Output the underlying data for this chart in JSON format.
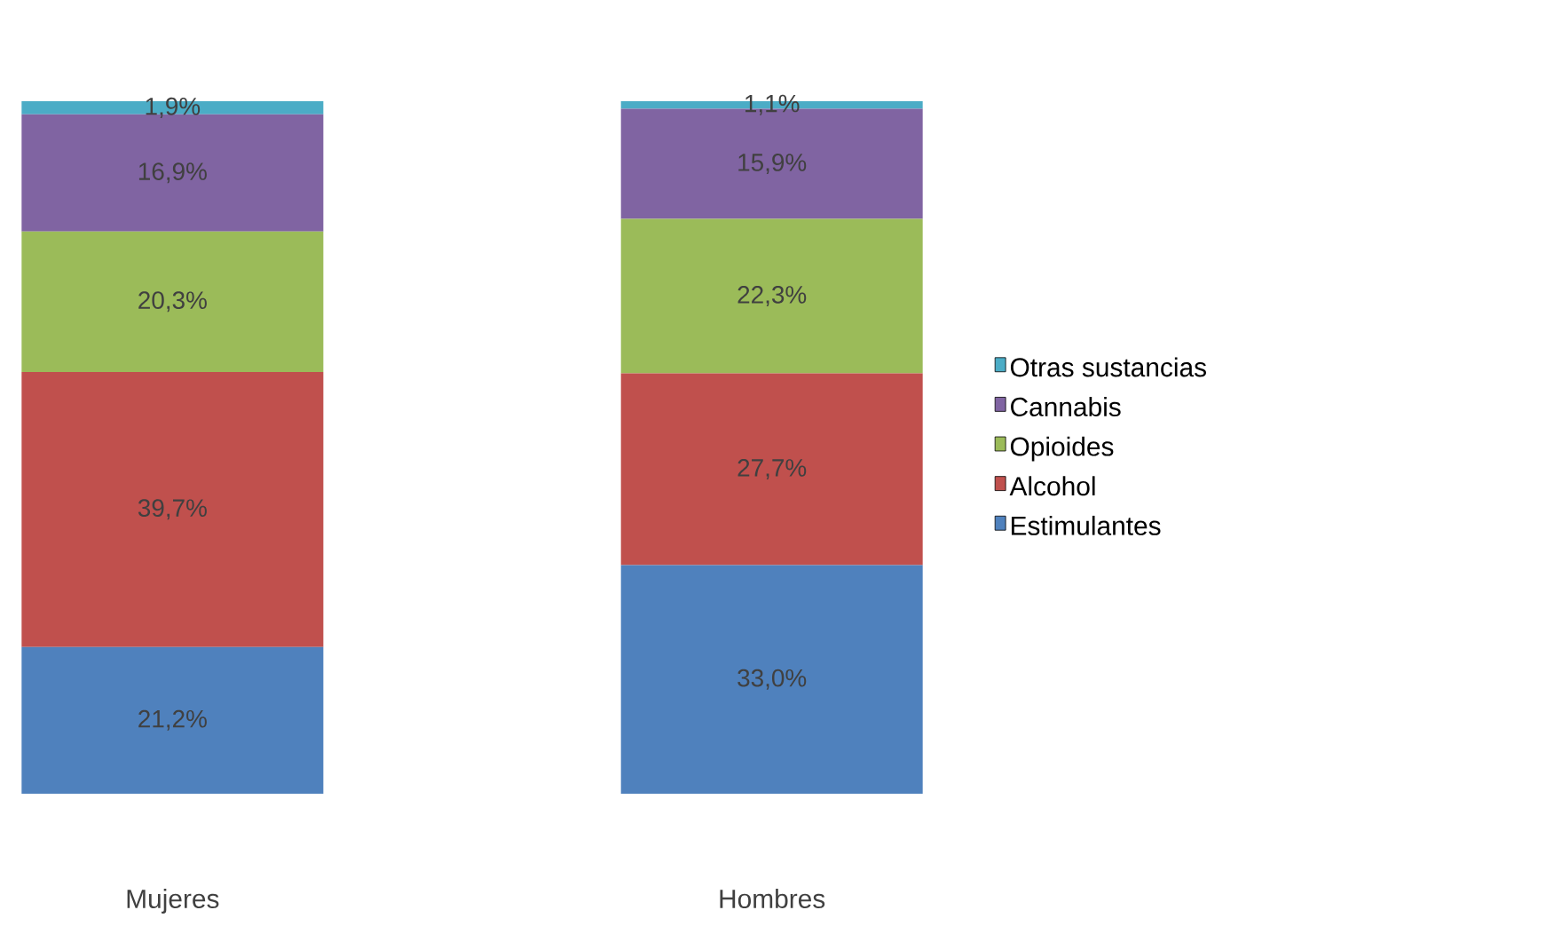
{
  "chart_data": {
    "type": "bar",
    "stacked": true,
    "categories": [
      "Mujeres",
      "Hombres"
    ],
    "legend": "right",
    "data_labels": true,
    "series": [
      {
        "name": "Estimulantes",
        "color": "#4f81bd",
        "values": [
          21.2,
          33.0
        ],
        "value_labels": [
          "21,2%",
          "33,0%"
        ]
      },
      {
        "name": "Alcohol",
        "color": "#c0504d",
        "values": [
          39.7,
          27.7
        ],
        "value_labels": [
          "39,7%",
          "27,7%"
        ]
      },
      {
        "name": "Opioides",
        "color": "#9bbb59",
        "values": [
          20.3,
          22.3
        ],
        "value_labels": [
          "20,3%",
          "22,3%"
        ]
      },
      {
        "name": "Cannabis",
        "color": "#8064a2",
        "values": [
          16.9,
          15.9
        ],
        "value_labels": [
          "16,9%",
          "15,9%"
        ]
      },
      {
        "name": "Otras sustancias",
        "color": "#4bacc6",
        "values": [
          1.9,
          1.1
        ],
        "value_labels": [
          "1,9%",
          "1,1%"
        ]
      }
    ]
  }
}
